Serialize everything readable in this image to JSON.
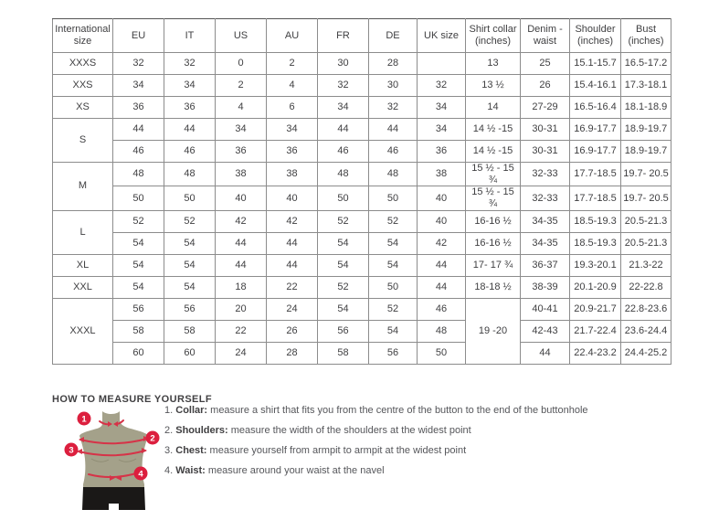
{
  "table": {
    "headers": [
      "International size",
      "EU",
      "IT",
      "US",
      "AU",
      "FR",
      "DE",
      "UK size",
      "Shirt collar (inches)",
      "Denim - waist",
      "Shoulder (inches)",
      "Bust (inches)"
    ],
    "groups": [
      {
        "size": "XXXS",
        "rows": [
          [
            "32",
            "32",
            "0",
            "2",
            "30",
            "28",
            "",
            "13",
            "25",
            "15.1-15.7",
            "16.5-17.2"
          ]
        ]
      },
      {
        "size": "XXS",
        "rows": [
          [
            "34",
            "34",
            "2",
            "4",
            "32",
            "30",
            "32",
            "13 ½",
            "26",
            "15.4-16.1",
            "17.3-18.1"
          ]
        ]
      },
      {
        "size": "XS",
        "rows": [
          [
            "36",
            "36",
            "4",
            "6",
            "34",
            "32",
            "34",
            "14",
            "27-29",
            "16.5-16.4",
            "18.1-18.9"
          ]
        ]
      },
      {
        "size": "S",
        "rows": [
          [
            "44",
            "44",
            "34",
            "34",
            "44",
            "44",
            "34",
            "14 ½ -15",
            "30-31",
            "16.9-17.7",
            "18.9-19.7"
          ],
          [
            "46",
            "46",
            "36",
            "36",
            "46",
            "46",
            "36",
            "14 ½ -15",
            "30-31",
            "16.9-17.7",
            "18.9-19.7"
          ]
        ]
      },
      {
        "size": "M",
        "rows": [
          [
            "48",
            "48",
            "38",
            "38",
            "48",
            "48",
            "38",
            "15 ½ - 15 ¾",
            "32-33",
            "17.7-18.5",
            "19.7- 20.5"
          ],
          [
            "50",
            "50",
            "40",
            "40",
            "50",
            "50",
            "40",
            "15 ½ - 15 ¾",
            "32-33",
            "17.7-18.5",
            "19.7- 20.5"
          ]
        ]
      },
      {
        "size": "L",
        "rows": [
          [
            "52",
            "52",
            "42",
            "42",
            "52",
            "52",
            "40",
            "16-16 ½",
            "34-35",
            "18.5-19.3",
            "20.5-21.3"
          ],
          [
            "54",
            "54",
            "44",
            "44",
            "54",
            "54",
            "42",
            "16-16 ½",
            "34-35",
            "18.5-19.3",
            "20.5-21.3"
          ]
        ]
      },
      {
        "size": "XL",
        "rows": [
          [
            "54",
            "54",
            "44",
            "44",
            "54",
            "54",
            "44",
            "17- 17 ¾",
            "36-37",
            "19.3-20.1",
            "21.3-22"
          ]
        ]
      },
      {
        "size": "XXL",
        "rows": [
          [
            "54",
            "54",
            "18",
            "22",
            "52",
            "50",
            "44",
            "18-18 ½",
            "38-39",
            "20.1-20.9",
            "22-22.8"
          ]
        ]
      },
      {
        "size": "XXXL",
        "merged_collar": "19 -20",
        "rows": [
          [
            "56",
            "56",
            "20",
            "24",
            "54",
            "52",
            "46",
            null,
            "40-41",
            "20.9-21.7",
            "22.8-23.6"
          ],
          [
            "58",
            "58",
            "22",
            "26",
            "56",
            "54",
            "48",
            null,
            "42-43",
            "21.7-22.4",
            "23.6-24.4"
          ],
          [
            "60",
            "60",
            "24",
            "28",
            "58",
            "56",
            "50",
            null,
            "44",
            "22.4-23.2",
            "24.4-25.2"
          ]
        ]
      }
    ]
  },
  "how_to_measure": {
    "title": "HOW TO MEASURE YOURSELF",
    "steps": [
      {
        "num": "1.",
        "label": "Collar:",
        "text": "measure a shirt that fits you from the centre of the button to the end of the buttonhole"
      },
      {
        "num": "2.",
        "label": "Shoulders:",
        "text": "measure the width of the shoulders at the widest point"
      },
      {
        "num": "3.",
        "label": "Chest:",
        "text": "measure yourself from armpit to armpit at the widest point"
      },
      {
        "num": "4.",
        "label": "Waist:",
        "text": "measure around your waist at the navel"
      }
    ]
  },
  "figure": {
    "badges": [
      "1",
      "2",
      "3",
      "4"
    ],
    "colors": {
      "accent_red": "#dc1f3e",
      "arc_red": "#d63348",
      "torso": "#a4a18a",
      "shorts": "#1a1817"
    }
  }
}
